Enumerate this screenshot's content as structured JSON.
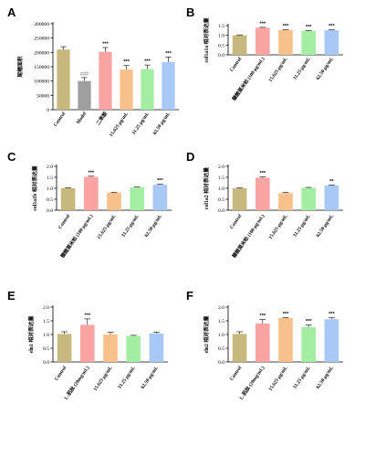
{
  "chart_data": [
    {
      "panel": "A",
      "type": "bar",
      "ylabel": "尾鳍面积",
      "ylim": [
        0,
        300000
      ],
      "yticks": [
        0,
        50000,
        100000,
        150000,
        200000,
        250000,
        300000
      ],
      "categories": [
        "Control",
        "Model",
        "二苯酚",
        "15.625 μg/mL",
        "31.25 μg/mL",
        "62.50 μg/mL"
      ],
      "values": [
        210000,
        100000,
        202000,
        140000,
        142000,
        166000
      ],
      "errors": [
        10000,
        12000,
        15000,
        14000,
        14000,
        18000
      ],
      "significance": [
        "",
        "###",
        "***",
        "***",
        "***",
        "***"
      ],
      "colors": [
        "#c7b97e",
        "#9f9f9f",
        "#f9a3a3",
        "#f8c08b",
        "#a4eea4",
        "#a8c8f6"
      ]
    },
    {
      "panel": "B",
      "type": "bar",
      "ylabel": "col1a1a 相对表达量",
      "ylim": [
        0,
        1.5
      ],
      "yticks": [
        0,
        0.5,
        1.0,
        1.5
      ],
      "categories": [
        "Control",
        "糠酸莫米松 (100 μg/mL)",
        "15.625 μg/mL",
        "31.25 μg/mL",
        "62.50 μg/mL"
      ],
      "values": [
        1.0,
        1.39,
        1.27,
        1.23,
        1.26
      ],
      "errors": [
        0.02,
        0.02,
        0.02,
        0.02,
        0.02
      ],
      "significance": [
        "",
        "***",
        "***",
        "***",
        "***"
      ],
      "colors": [
        "#c7b97e",
        "#f9a3a3",
        "#f8c08b",
        "#a4eea4",
        "#a8c8f6"
      ]
    },
    {
      "panel": "C",
      "type": "bar",
      "ylabel": "col1a1b 相对表达量",
      "ylim": [
        0,
        2.0
      ],
      "yticks": [
        0,
        0.5,
        1.0,
        1.5,
        2.0
      ],
      "categories": [
        "Control",
        "糠酸莫米松 (100 μg/mL)",
        "15.625 μg/mL",
        "31.25 μg/mL",
        "62.50 μg/mL"
      ],
      "values": [
        1.0,
        1.52,
        0.8,
        1.04,
        1.16
      ],
      "errors": [
        0.02,
        0.03,
        0.02,
        0.02,
        0.02
      ],
      "significance": [
        "",
        "***",
        "",
        "",
        "***"
      ],
      "colors": [
        "#c7b97e",
        "#f9a3a3",
        "#f8c08b",
        "#a4eea4",
        "#a8c8f6"
      ]
    },
    {
      "panel": "D",
      "type": "bar",
      "ylabel": "col1a2 相对表达量",
      "ylim": [
        0,
        2.0
      ],
      "yticks": [
        0,
        0.5,
        1.0,
        1.5,
        2.0
      ],
      "categories": [
        "Control",
        "糠酸莫米松 (100 μg/mL)",
        "15.625 μg/mL",
        "31.25 μg/mL",
        "62.50 μg/mL"
      ],
      "values": [
        1.0,
        1.48,
        0.78,
        1.02,
        1.13
      ],
      "errors": [
        0.02,
        0.05,
        0.03,
        0.02,
        0.02
      ],
      "significance": [
        "",
        "***",
        "",
        "",
        "**"
      ],
      "colors": [
        "#c7b97e",
        "#f9a3a3",
        "#f8c08b",
        "#a4eea4",
        "#a8c8f6"
      ]
    },
    {
      "panel": "E",
      "type": "bar",
      "ylabel": "eln1 相对表达量",
      "ylim": [
        0,
        2.0
      ],
      "yticks": [
        0,
        0.5,
        1.0,
        1.5,
        2.0
      ],
      "categories": [
        "Control",
        "L-肌肽 (20mg/mL)",
        "15.625 μg/mL",
        "31.25 μg/mL",
        "62.50 μg/mL"
      ],
      "values": [
        1.02,
        1.35,
        1.0,
        0.95,
        1.04
      ],
      "errors": [
        0.08,
        0.22,
        0.08,
        0.02,
        0.05
      ],
      "significance": [
        "",
        "***",
        "",
        "",
        ""
      ],
      "colors": [
        "#c7b97e",
        "#f9a3a3",
        "#f8c08b",
        "#a4eea4",
        "#a8c8f6"
      ]
    },
    {
      "panel": "F",
      "type": "bar",
      "ylabel": "eln2 相对表达量",
      "ylim": [
        0,
        2.0
      ],
      "yticks": [
        0,
        0.5,
        1.0,
        1.5,
        2.0
      ],
      "categories": [
        "Control",
        "L-肌肽 (20mg/mL)",
        "15.625 μg/mL",
        "31.25 μg/mL",
        "62.50 μg/mL"
      ],
      "values": [
        1.02,
        1.4,
        1.6,
        1.27,
        1.56
      ],
      "errors": [
        0.08,
        0.15,
        0.02,
        0.08,
        0.05
      ],
      "significance": [
        "",
        "***",
        "***",
        "***",
        "***"
      ],
      "colors": [
        "#c7b97e",
        "#f9a3a3",
        "#f8c08b",
        "#a4eea4",
        "#a8c8f6"
      ]
    }
  ]
}
